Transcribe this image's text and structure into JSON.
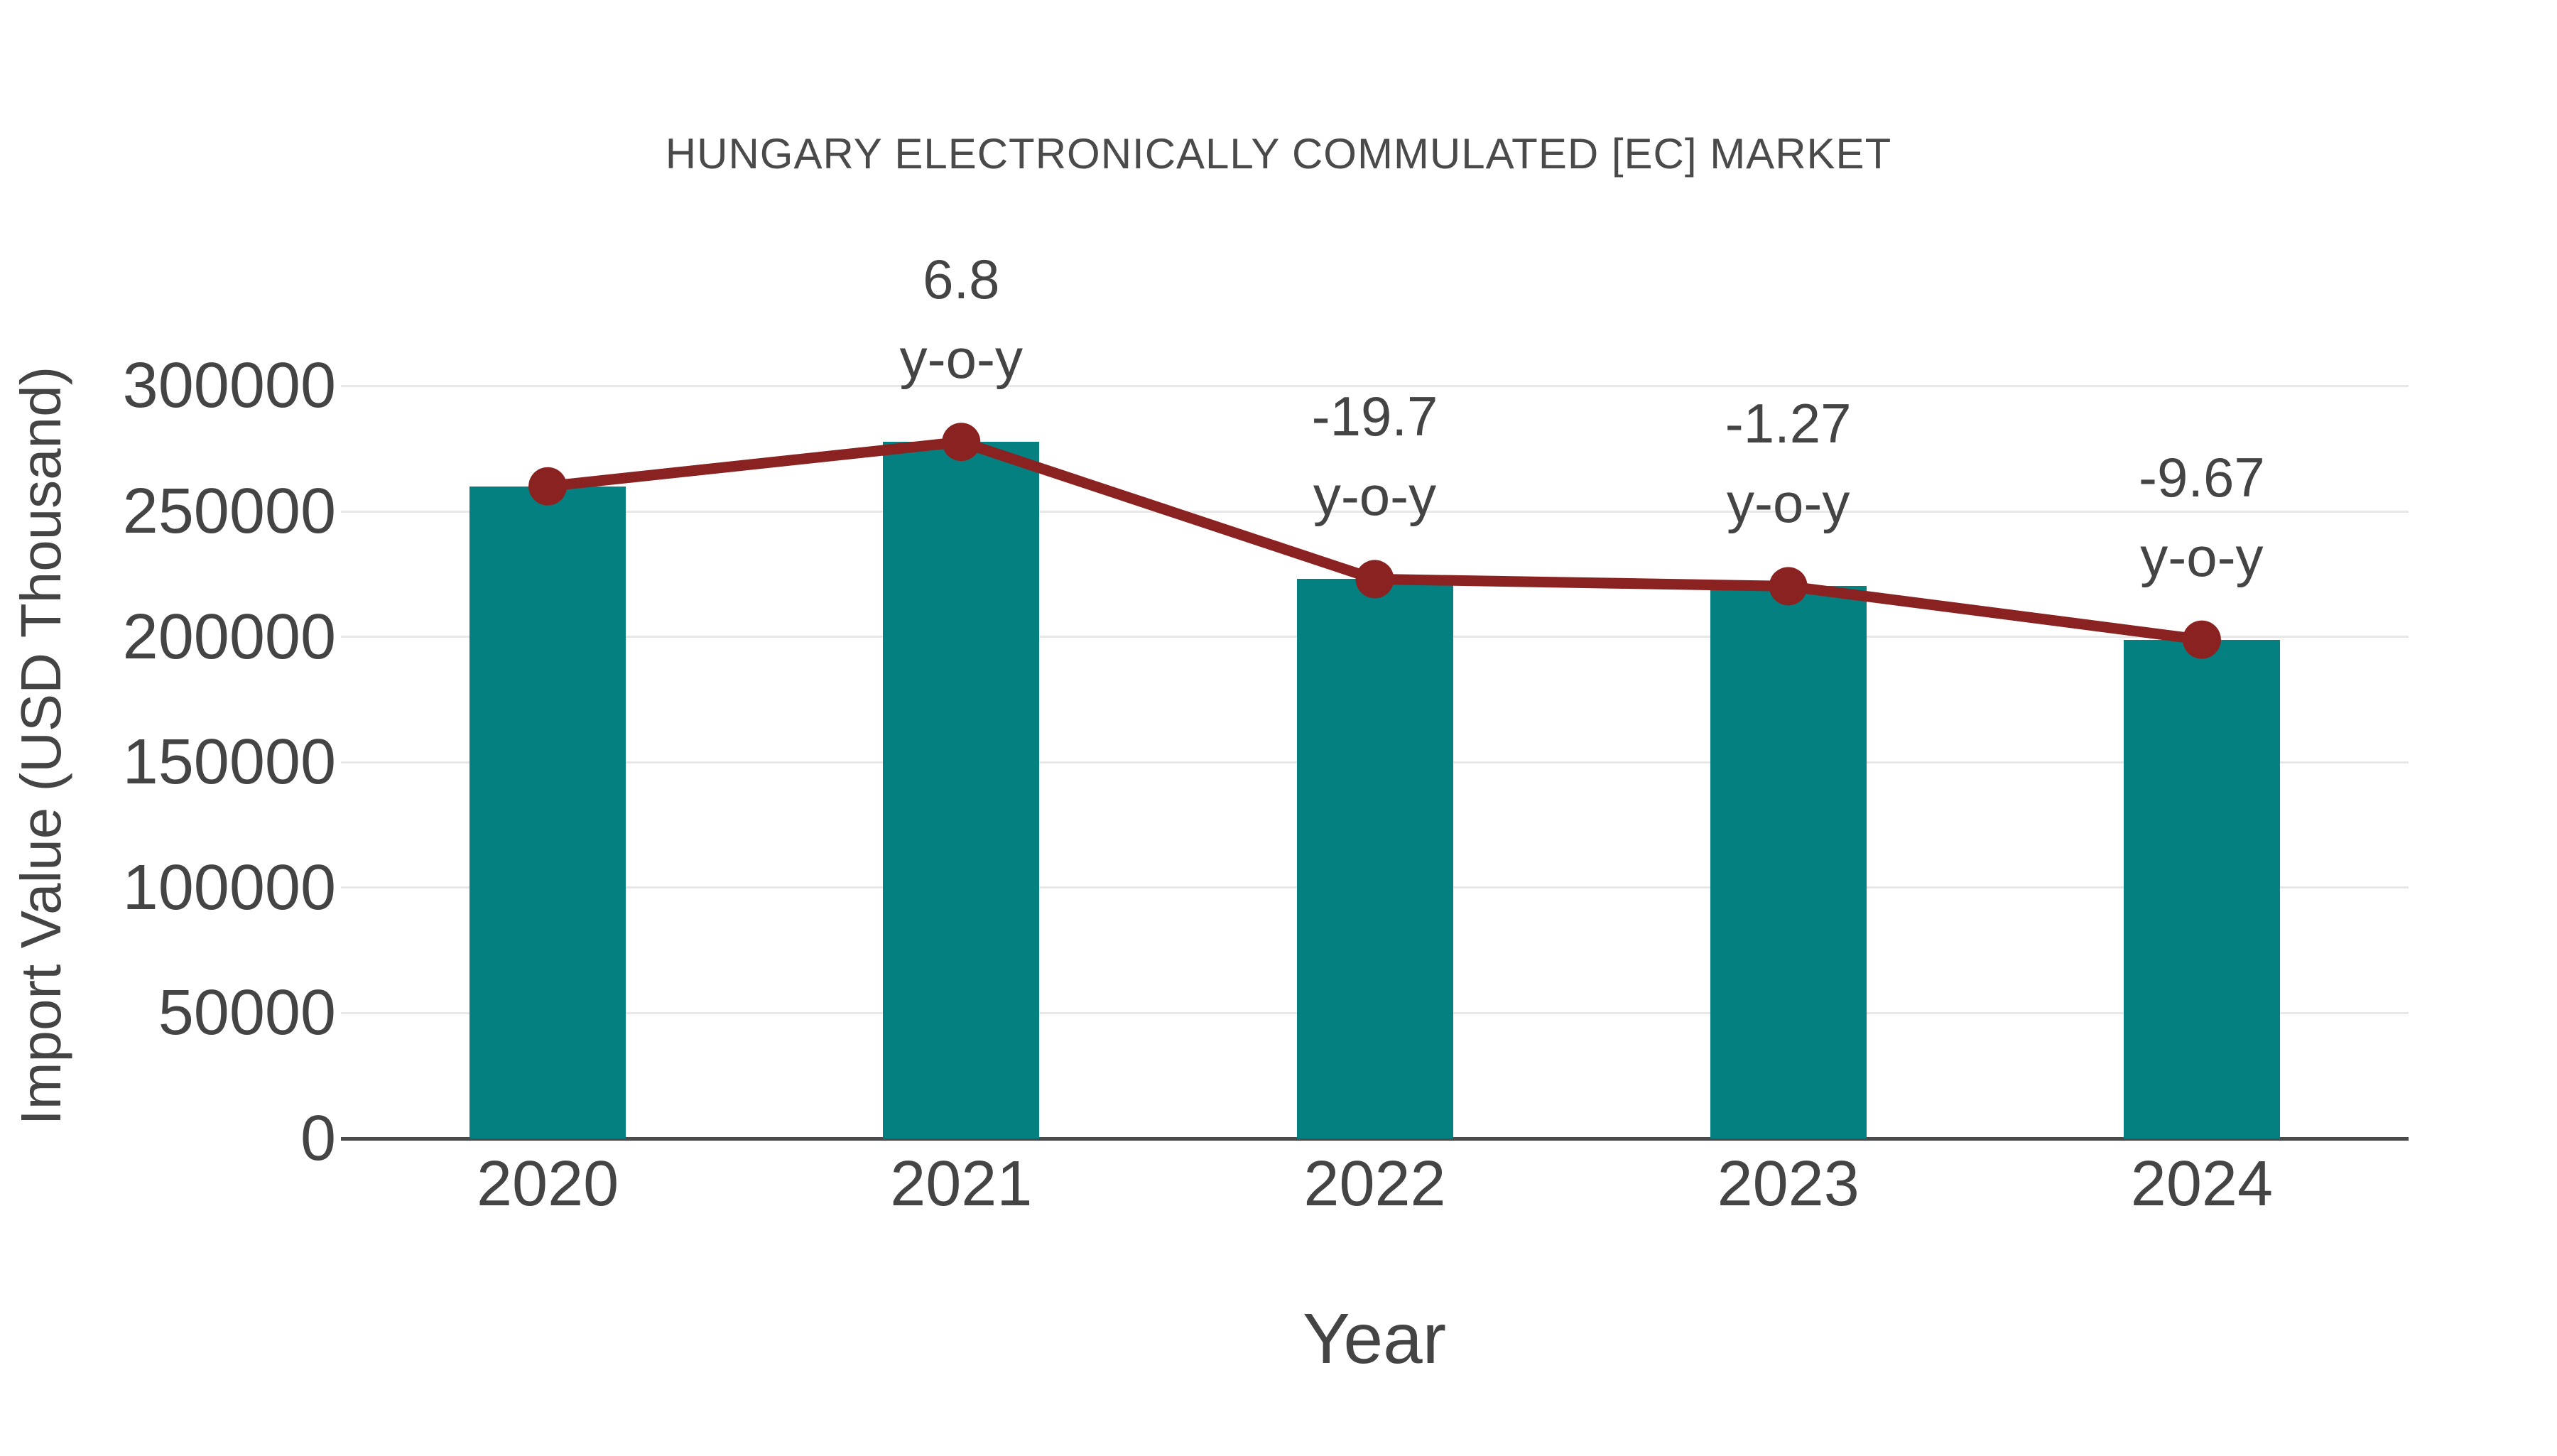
{
  "chart_data": {
    "type": "combo-bar-line",
    "title": "HUNGARY ELECTRONICALLY COMMULATED [EC] MARKET",
    "xlabel": "Year",
    "ylabel": "Import Value (USD Thousand)",
    "categories": [
      "2020",
      "2021",
      "2022",
      "2023",
      "2024"
    ],
    "series": [
      {
        "name": "Import Value",
        "type": "bar",
        "color": "#048080",
        "values": [
          260000,
          277680,
          222980,
          220150,
          198860
        ]
      },
      {
        "name": "y-o-y trend",
        "type": "line",
        "color": "#8b2222",
        "values": [
          260000,
          277680,
          222980,
          220150,
          198860
        ]
      }
    ],
    "annotations": [
      {
        "category": "2021",
        "value": "6.8",
        "suffix": "y-o-y"
      },
      {
        "category": "2022",
        "value": "-19.7",
        "suffix": "y-o-y"
      },
      {
        "category": "2023",
        "value": "-1.27",
        "suffix": "y-o-y"
      },
      {
        "category": "2024",
        "value": "-9.67",
        "suffix": "y-o-y"
      }
    ],
    "yticks": [
      0,
      50000,
      100000,
      150000,
      200000,
      250000,
      300000
    ],
    "ylim": [
      0,
      300000
    ],
    "grid": true,
    "legend": "none"
  }
}
